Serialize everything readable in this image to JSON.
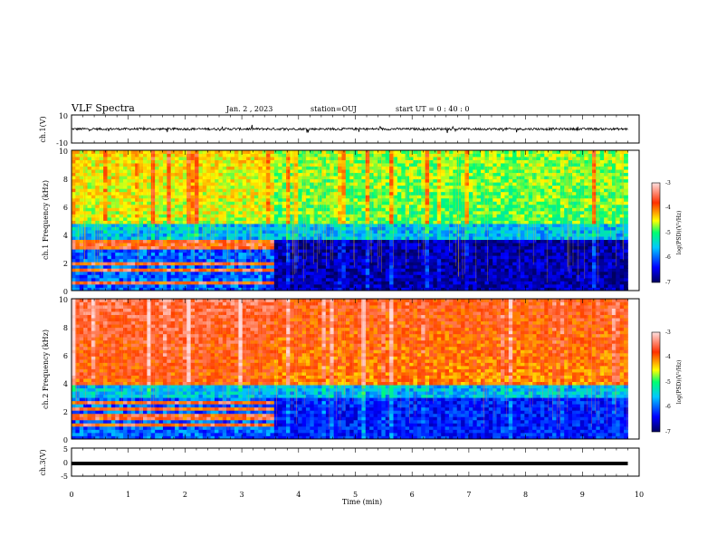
{
  "header": {
    "title": "VLF Spectra",
    "date": "Jan. 2 , 2023",
    "station": "station=OUJ",
    "start_ut": "start UT = 0 : 40 : 0"
  },
  "chart_data": [
    {
      "type": "line",
      "panel": "ch1-waveform",
      "ylabel": "ch.1(V)",
      "ylim": [
        -10,
        10
      ],
      "y_ticks": [
        "10",
        "-10"
      ],
      "xlim": [
        0,
        10
      ],
      "description_value": "noisy signal centered at about 0 V with amplitude roughly +/-1.5 V, extending to about 9.8 min"
    },
    {
      "type": "heatmap",
      "panel": "ch1-spectrogram",
      "ylabel": "ch.1 Frequency (kHz)",
      "ylim": [
        0,
        10
      ],
      "y_ticks": [
        "0",
        "2",
        "4",
        "6",
        "8",
        "10"
      ],
      "xlim": [
        0,
        10
      ],
      "data_extent_min": 9.8,
      "colorbar": {
        "label": "log(PSD)(V²/Hz)",
        "range": [
          -7,
          -3
        ],
        "ticks": [
          "-3",
          "-4",
          "-5",
          "-6",
          "-7"
        ]
      },
      "regime_change_min": 3.55,
      "high_band_level_before": -4.6,
      "high_band_level_after": -4.9,
      "low_band_features_before": "bright lines near 0.5, 1.5, 2.0, 3.0, 3.4 kHz",
      "low_band_level_after": -6.7
    },
    {
      "type": "heatmap",
      "panel": "ch2-spectrogram",
      "ylabel": "ch.2 Frequency (kHz)",
      "ylim": [
        0,
        10
      ],
      "y_ticks": [
        "0",
        "2",
        "4",
        "6",
        "8",
        "10"
      ],
      "xlim": [
        0,
        10
      ],
      "data_extent_min": 9.8,
      "colorbar": {
        "label": "log(PSD)(V²/Hz)",
        "range": [
          -7,
          -3
        ],
        "ticks": [
          "-3",
          "-4",
          "-5",
          "-6",
          "-7"
        ]
      },
      "regime_change_min": 3.55,
      "high_band_level_before": -3.9,
      "high_band_level_after": -4.1,
      "low_band_features_before": "bright lines near 1.0, 1.6, 2.2, 2.6 kHz",
      "low_band_level_after": -6.3
    },
    {
      "type": "line",
      "panel": "ch3-waveform",
      "ylabel": "ch.3(V)",
      "ylim": [
        -5,
        5
      ],
      "y_ticks": [
        "5",
        "0",
        "-5"
      ],
      "xlim": [
        0,
        10
      ],
      "values": {
        "x": [
          0,
          9.8
        ],
        "y": [
          -0.5,
          -0.5
        ]
      }
    }
  ],
  "x_axis": {
    "label": "Time (min)",
    "ticks": [
      "0",
      "1",
      "2",
      "3",
      "4",
      "5",
      "6",
      "7",
      "8",
      "9",
      "10"
    ]
  },
  "colors": {
    "scale": [
      "#000060",
      "#0000ff",
      "#00c0ff",
      "#00ff70",
      "#ffff00",
      "#ff4000",
      "#ffd8d8"
    ]
  }
}
